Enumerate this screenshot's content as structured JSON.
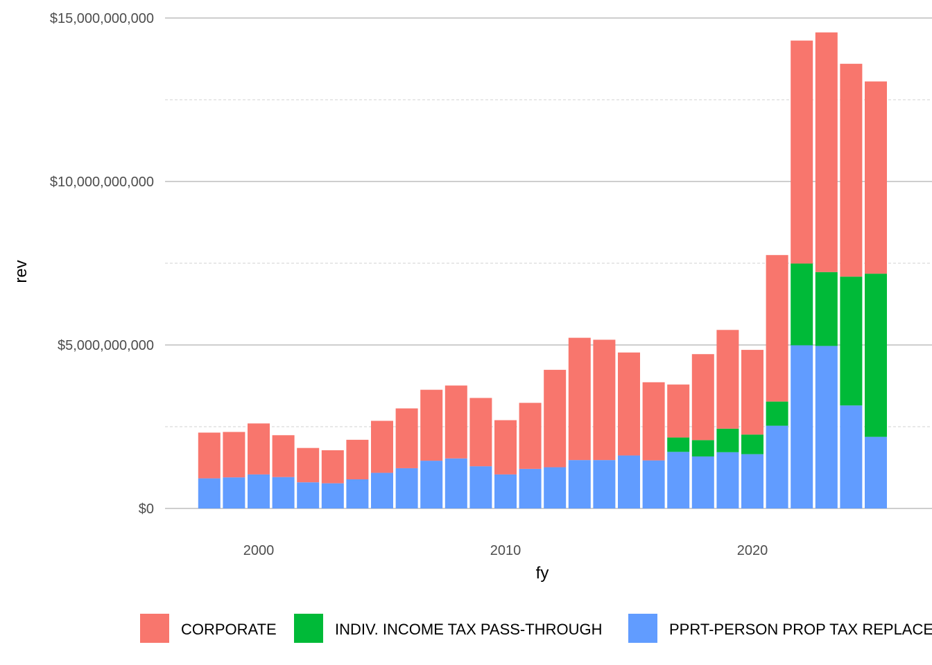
{
  "chart_data": {
    "type": "bar",
    "stacked": true,
    "xlabel": "fy",
    "ylabel": "rev",
    "x_ticks": [
      "2000",
      "2010",
      "2020"
    ],
    "x_tick_values": [
      2000,
      2010,
      2020
    ],
    "y_ticks": [
      "$0",
      "$5,000,000,000",
      "$10,000,000,000",
      "$15,000,000,000"
    ],
    "y_tick_values": [
      0,
      5000000000,
      10000000000,
      15000000000
    ],
    "ylim": [
      0,
      15000000000
    ],
    "grid": true,
    "legend_position": "bottom",
    "x": [
      1998,
      1999,
      2000,
      2001,
      2002,
      2003,
      2004,
      2005,
      2006,
      2007,
      2008,
      2009,
      2010,
      2011,
      2012,
      2013,
      2014,
      2015,
      2016,
      2017,
      2018,
      2019,
      2020,
      2021,
      2022,
      2023,
      2024,
      2025
    ],
    "series": [
      {
        "name": "PPRT-PERSON PROP TAX REPLACE",
        "color": "#619CFF",
        "values": [
          920000000,
          950000000,
          1040000000,
          960000000,
          800000000,
          770000000,
          890000000,
          1090000000,
          1230000000,
          1460000000,
          1530000000,
          1290000000,
          1040000000,
          1210000000,
          1260000000,
          1480000000,
          1480000000,
          1620000000,
          1470000000,
          1730000000,
          1590000000,
          1720000000,
          1660000000,
          2530000000,
          4990000000,
          4970000000,
          3150000000,
          2190000000
        ]
      },
      {
        "name": "INDIV. INCOME TAX PASS-THROUGH",
        "color": "#00BA38",
        "values": [
          0,
          0,
          0,
          0,
          0,
          0,
          0,
          0,
          0,
          0,
          0,
          0,
          0,
          0,
          0,
          0,
          0,
          0,
          0,
          440000000,
          500000000,
          720000000,
          600000000,
          740000000,
          2500000000,
          2260000000,
          3940000000,
          4990000000
        ]
      },
      {
        "name": "CORPORATE",
        "color": "#F8766D",
        "values": [
          1400000000,
          1390000000,
          1560000000,
          1280000000,
          1050000000,
          1010000000,
          1210000000,
          1590000000,
          1830000000,
          2170000000,
          2230000000,
          2090000000,
          1660000000,
          2020000000,
          2980000000,
          3740000000,
          3680000000,
          3150000000,
          2390000000,
          1620000000,
          2630000000,
          3020000000,
          2590000000,
          4480000000,
          6820000000,
          7330000000,
          6510000000,
          5880000000
        ]
      }
    ],
    "legend": [
      {
        "label": "CORPORATE",
        "color": "#F8766D"
      },
      {
        "label": "INDIV. INCOME TAX PASS-THROUGH",
        "color": "#00BA38"
      },
      {
        "label": "PPRT-PERSON PROP TAX REPLACE",
        "color": "#619CFF"
      }
    ]
  }
}
